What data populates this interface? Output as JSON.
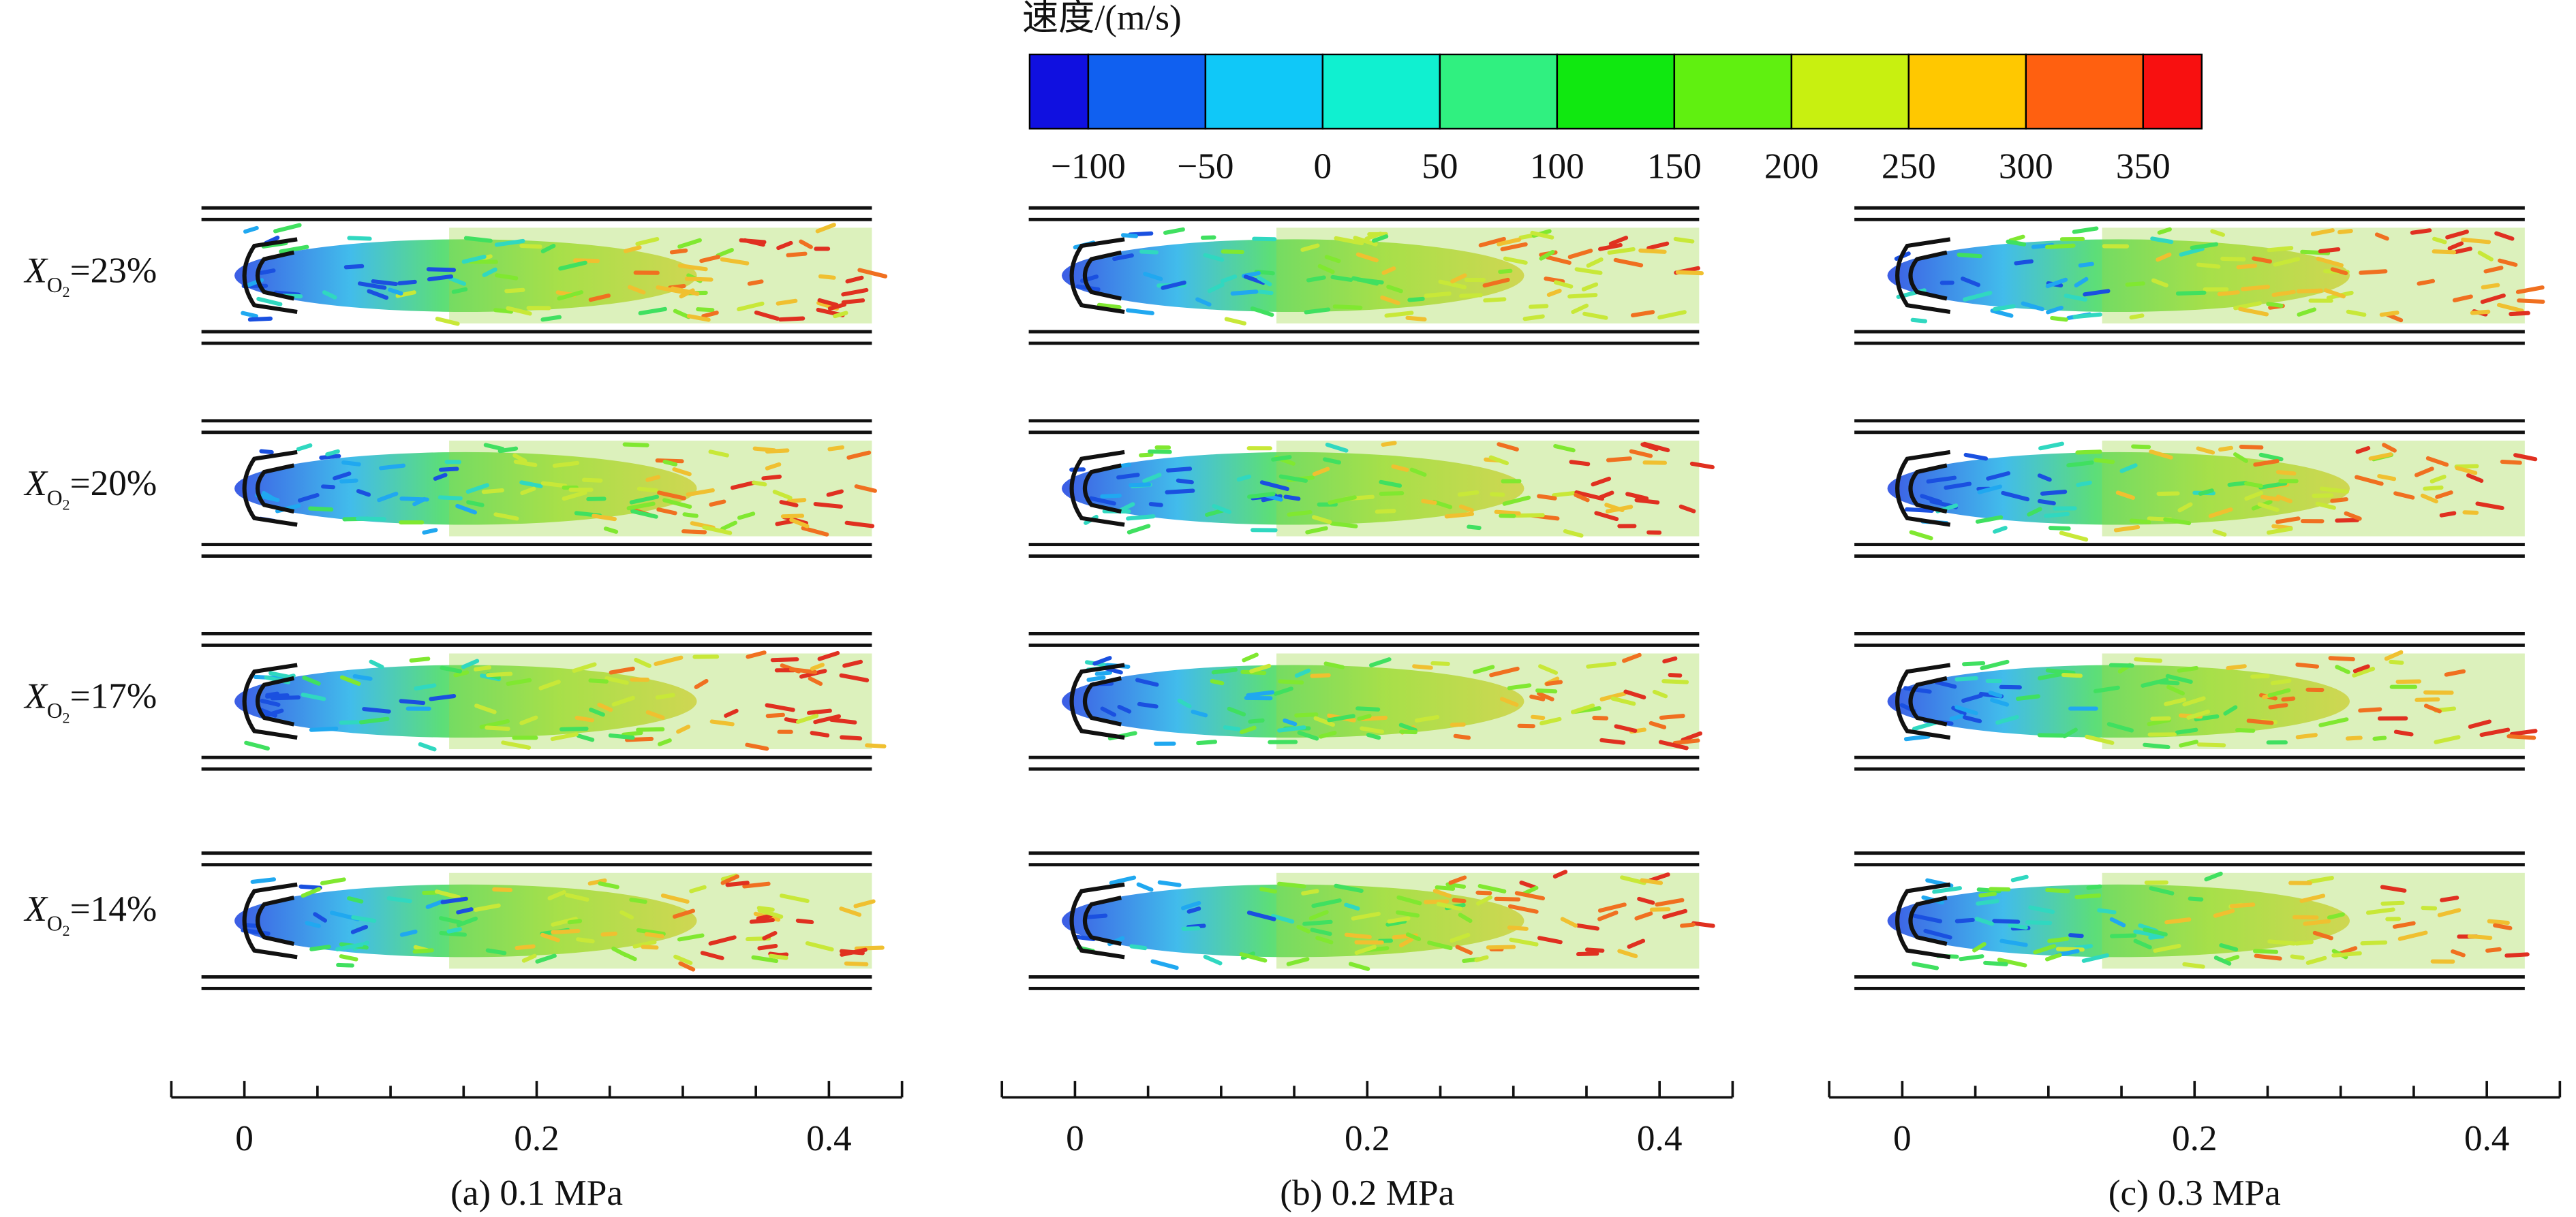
{
  "colorbar": {
    "title": "速度/(m/s)",
    "clim": [
      -125,
      375
    ],
    "colors": [
      "#1010e0",
      "#1060f0",
      "#10c8f8",
      "#10f0d0",
      "#30f080",
      "#10e810",
      "#60f010",
      "#c8f010",
      "#ffc800",
      "#ff6010",
      "#f81010"
    ],
    "ticks": [
      {
        "value": -100,
        "label": "−100"
      },
      {
        "value": -50,
        "label": "−50"
      },
      0,
      50,
      100,
      150,
      200,
      250,
      300,
      350
    ]
  },
  "row_labels": {
    "symbol": "X",
    "subscript": "O",
    "subscript_index": "2",
    "rows": [
      "=23%",
      "=20%",
      "=17%",
      "=14%"
    ]
  },
  "panels": [
    {
      "caption": "(a) 0.1 MPa",
      "xlim": [
        -0.05,
        0.45
      ],
      "xticks": [
        0,
        0.2,
        0.4
      ],
      "minor_xticks": [
        0.05,
        0.1,
        0.15,
        0.25,
        0.3,
        0.35
      ]
    },
    {
      "caption": "(b) 0.2 MPa",
      "xlim": [
        -0.05,
        0.45
      ],
      "xticks": [
        0,
        0.2,
        0.4
      ],
      "minor_xticks": [
        0.05,
        0.1,
        0.15,
        0.25,
        0.3,
        0.35
      ]
    },
    {
      "caption": "(c) 0.3 MPa",
      "xlim": [
        -0.05,
        0.45
      ],
      "xticks": [
        0,
        0.2,
        0.4
      ],
      "minor_xticks": [
        0.05,
        0.1,
        0.15,
        0.25,
        0.3,
        0.35
      ]
    }
  ]
}
